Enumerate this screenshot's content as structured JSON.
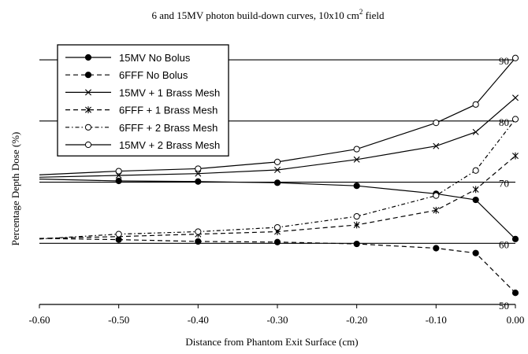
{
  "chart_data": {
    "type": "line",
    "title": "6 and 15MV photon build-down curves, 10x10 cm",
    "title_superscript": "2",
    "title_suffix": " field",
    "xlabel": "Distance from Phantom Exit Surface (cm)",
    "ylabel": "Percentage Depth Dose (%)",
    "xlim": [
      -0.6,
      0.0
    ],
    "ylim": [
      50,
      94
    ],
    "x_ticks": [
      "-0.60",
      "-0.50",
      "-0.40",
      "-0.30",
      "-0.20",
      "-0.10",
      "0.00"
    ],
    "x_tick_values": [
      -0.6,
      -0.5,
      -0.4,
      -0.3,
      -0.2,
      -0.1,
      0.0
    ],
    "y_ticks": [
      "50",
      "60",
      "70",
      "80",
      "90"
    ],
    "y_tick_values": [
      50,
      60,
      70,
      80,
      90
    ],
    "grid": "horizontal",
    "legend_placement": "top-left",
    "series": [
      {
        "name": "15MV No Bolus",
        "marker": "filled-circle",
        "dash": "solid",
        "x": [
          -0.6,
          -0.5,
          -0.4,
          -0.3,
          -0.2,
          -0.1,
          -0.05,
          0.0
        ],
        "y": [
          70.5,
          70.2,
          70.1,
          69.9,
          69.4,
          68.1,
          67.1,
          60.7
        ]
      },
      {
        "name": "6FFF No Bolus",
        "marker": "filled-circle",
        "dash": "dashed",
        "x": [
          -0.6,
          -0.5,
          -0.4,
          -0.3,
          -0.2,
          -0.1,
          -0.05,
          0.0
        ],
        "y": [
          60.8,
          60.6,
          60.3,
          60.2,
          59.9,
          59.2,
          58.4,
          51.9
        ]
      },
      {
        "name": "15MV + 1 Brass Mesh",
        "marker": "x",
        "dash": "solid",
        "x": [
          -0.6,
          -0.5,
          -0.4,
          -0.3,
          -0.2,
          -0.1,
          -0.05,
          0.0
        ],
        "y": [
          70.8,
          71.1,
          71.4,
          72.0,
          73.7,
          75.9,
          78.2,
          83.8
        ]
      },
      {
        "name": "6FFF + 1 Brass Mesh",
        "marker": "star",
        "dash": "dashed",
        "x": [
          -0.6,
          -0.5,
          -0.4,
          -0.3,
          -0.2,
          -0.1,
          -0.05,
          0.0
        ],
        "y": [
          60.8,
          61.1,
          61.5,
          61.9,
          63.0,
          65.4,
          68.8,
          74.3
        ]
      },
      {
        "name": "6FFF + 2 Brass Mesh",
        "marker": "open-circle",
        "dash": "dotdash",
        "x": [
          -0.6,
          -0.5,
          -0.4,
          -0.3,
          -0.2,
          -0.1,
          -0.05,
          0.0
        ],
        "y": [
          60.7,
          61.5,
          61.9,
          62.6,
          64.4,
          67.8,
          71.9,
          80.3
        ]
      },
      {
        "name": "15MV + 2 Brass Mesh",
        "marker": "open-circle",
        "dash": "solid",
        "x": [
          -0.6,
          -0.5,
          -0.4,
          -0.3,
          -0.2,
          -0.1,
          -0.05,
          0.0
        ],
        "y": [
          71.2,
          71.8,
          72.2,
          73.3,
          75.4,
          79.7,
          82.7,
          90.3
        ]
      }
    ]
  }
}
